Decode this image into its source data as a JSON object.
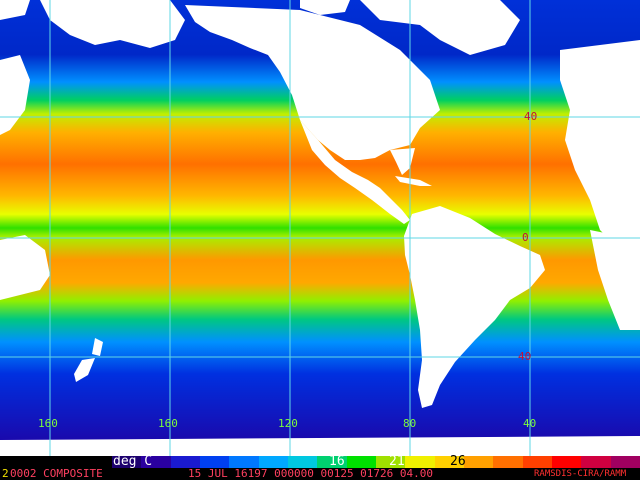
{
  "map": {
    "longitude_labels": [
      "160",
      "160",
      "120",
      "80",
      "40"
    ],
    "latitude_labels": [
      "40",
      "0",
      "40"
    ],
    "grid_color": "#5fd7e6",
    "land_color": "#ffffff"
  },
  "colorbar": {
    "unit_label": "deg C",
    "tick_16": "16",
    "tick_21": "21",
    "tick_26": "26",
    "colors": [
      "#1c006e",
      "#2a00a0",
      "#1a1ad0",
      "#0040f0",
      "#0078ff",
      "#00a8ff",
      "#00c8e0",
      "#00d070",
      "#00e000",
      "#a0e000",
      "#f0f000",
      "#ffd000",
      "#ffa000",
      "#ff7000",
      "#ff4000",
      "#ff0000",
      "#d00040",
      "#a00060"
    ]
  },
  "footer": {
    "prefix_digit": "2",
    "composite_label": "0002 COMPOSITE",
    "info": "15 JUL 16197 000000 00125 01726 04.00",
    "credit": "RAMSDIS-CIRA/RAMM"
  }
}
